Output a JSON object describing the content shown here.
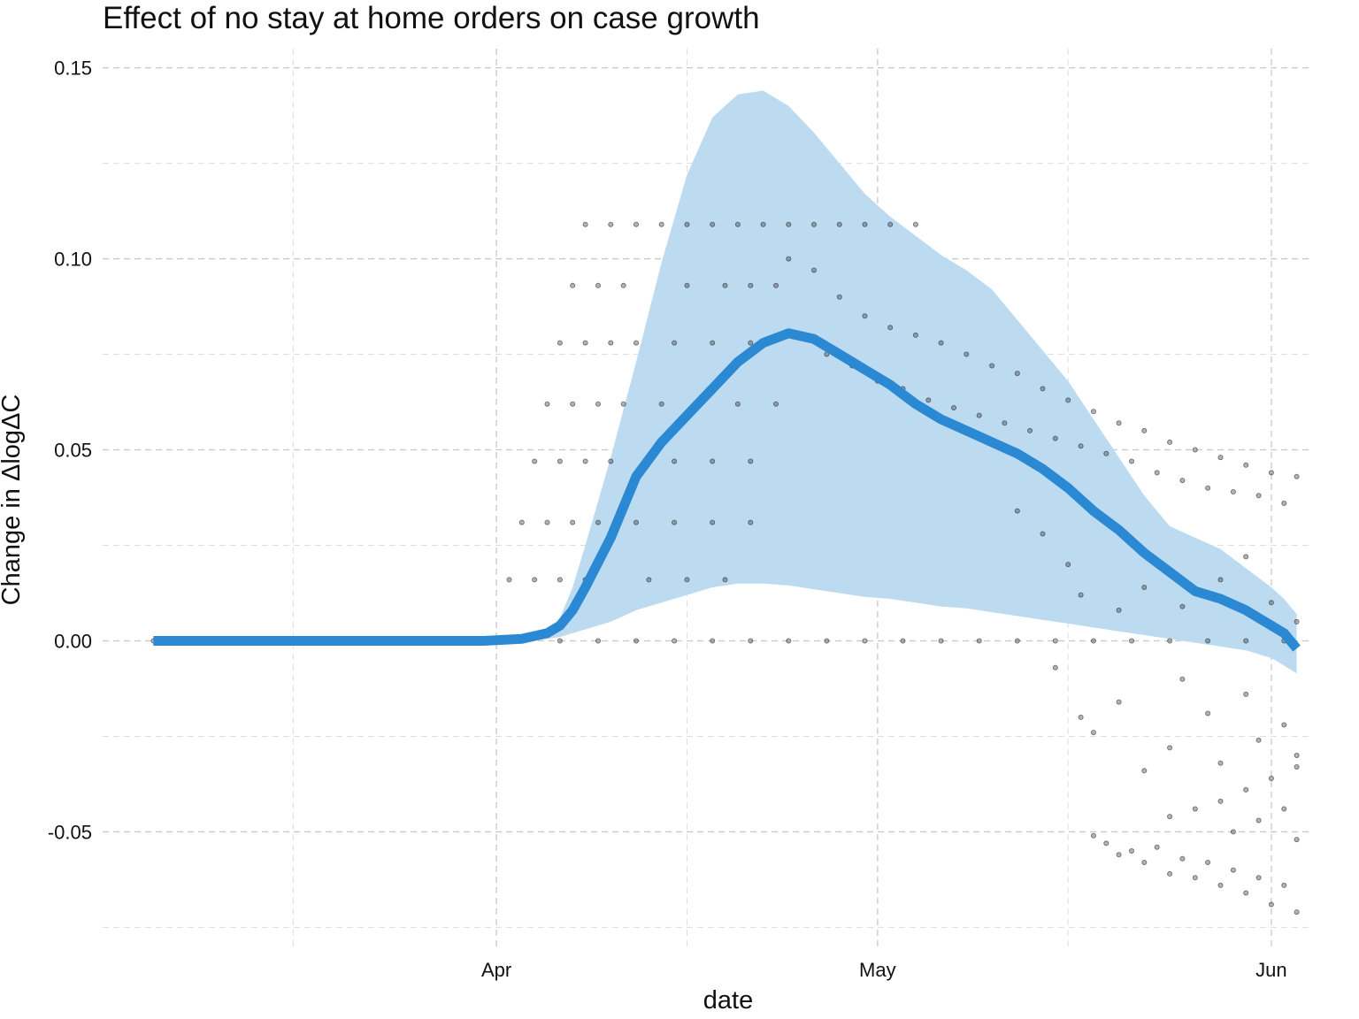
{
  "chart_data": {
    "type": "line",
    "title": "Effect of no stay at home orders on case growth",
    "xlabel": "date",
    "ylabel": "Change in ΔlogΔC",
    "x_range": [
      "2020-03-01",
      "2020-06-04"
    ],
    "ylim": [
      -0.08,
      0.155
    ],
    "x_tick_labels": [
      {
        "date": "2020-04-01",
        "label": "Apr"
      },
      {
        "date": "2020-05-01",
        "label": "May"
      },
      {
        "date": "2020-06-01",
        "label": "Jun"
      }
    ],
    "x_minor_grid_dates": [
      "2020-03-16",
      "2020-04-16",
      "2020-05-16"
    ],
    "y_ticks": [
      -0.05,
      0.0,
      0.05,
      0.1,
      0.15
    ],
    "y_tick_labels": [
      "-0.05",
      "0.00",
      "0.05",
      "0.10",
      "0.15"
    ],
    "y_minor_grid": [
      -0.075,
      -0.025,
      0.025,
      0.075,
      0.125
    ],
    "grid": true,
    "colors": {
      "line": "#2b88d2",
      "band": "#bcdbf1",
      "points": "#222222"
    },
    "series": [
      {
        "type": "line",
        "x": [
          "2020-03-05",
          "2020-03-31",
          "2020-04-03",
          "2020-04-05",
          "2020-04-06",
          "2020-04-07",
          "2020-04-08",
          "2020-04-10",
          "2020-04-12",
          "2020-04-14",
          "2020-04-16",
          "2020-04-18",
          "2020-04-20",
          "2020-04-22",
          "2020-04-24",
          "2020-04-26",
          "2020-04-28",
          "2020-04-30",
          "2020-05-02",
          "2020-05-04",
          "2020-05-06",
          "2020-05-08",
          "2020-05-10",
          "2020-05-12",
          "2020-05-14",
          "2020-05-16",
          "2020-05-18",
          "2020-05-20",
          "2020-05-22",
          "2020-05-24",
          "2020-05-26",
          "2020-05-28",
          "2020-05-30",
          "2020-06-01",
          "2020-06-02",
          "2020-06-03"
        ],
        "y": [
          0.0,
          0.0,
          0.0005,
          0.002,
          0.004,
          0.008,
          0.014,
          0.027,
          0.043,
          0.052,
          0.059,
          0.066,
          0.073,
          0.078,
          0.0805,
          0.079,
          0.075,
          0.071,
          0.067,
          0.062,
          0.058,
          0.055,
          0.052,
          0.049,
          0.045,
          0.04,
          0.034,
          0.029,
          0.023,
          0.018,
          0.013,
          0.011,
          0.008,
          0.004,
          0.002,
          -0.002
        ]
      },
      {
        "type": "band",
        "x": [
          "2020-04-04",
          "2020-04-05",
          "2020-04-06",
          "2020-04-07",
          "2020-04-08",
          "2020-04-10",
          "2020-04-12",
          "2020-04-14",
          "2020-04-16",
          "2020-04-18",
          "2020-04-20",
          "2020-04-22",
          "2020-04-24",
          "2020-04-26",
          "2020-04-28",
          "2020-04-30",
          "2020-05-02",
          "2020-05-04",
          "2020-05-06",
          "2020-05-08",
          "2020-05-10",
          "2020-05-12",
          "2020-05-14",
          "2020-05-16",
          "2020-05-18",
          "2020-05-20",
          "2020-05-22",
          "2020-05-24",
          "2020-05-26",
          "2020-05-28",
          "2020-05-30",
          "2020-06-01",
          "2020-06-02",
          "2020-06-03"
        ],
        "upper": [
          0.0,
          0.002,
          0.006,
          0.014,
          0.025,
          0.048,
          0.073,
          0.099,
          0.122,
          0.137,
          0.143,
          0.144,
          0.14,
          0.133,
          0.125,
          0.117,
          0.111,
          0.106,
          0.101,
          0.097,
          0.092,
          0.084,
          0.076,
          0.068,
          0.058,
          0.048,
          0.038,
          0.03,
          0.027,
          0.024,
          0.019,
          0.014,
          0.011,
          0.007
        ],
        "lower": [
          0.0,
          0.0005,
          0.001,
          0.002,
          0.003,
          0.005,
          0.008,
          0.01,
          0.012,
          0.014,
          0.015,
          0.015,
          0.0145,
          0.0135,
          0.0125,
          0.0115,
          0.011,
          0.01,
          0.009,
          0.0085,
          0.0075,
          0.0065,
          0.0055,
          0.0045,
          0.0035,
          0.0025,
          0.0015,
          0.0005,
          -0.0005,
          -0.0015,
          -0.0025,
          -0.0045,
          -0.0065,
          -0.0085
        ]
      },
      {
        "type": "scatter",
        "points": [
          {
            "x": "2020-03-05",
            "y": 0
          },
          {
            "x": "2020-03-10",
            "y": 0
          },
          {
            "x": "2020-03-15",
            "y": 0
          },
          {
            "x": "2020-03-20",
            "y": 0
          },
          {
            "x": "2020-03-25",
            "y": 0
          },
          {
            "x": "2020-03-30",
            "y": 0
          },
          {
            "x": "2020-04-03",
            "y": 0
          },
          {
            "x": "2020-04-06",
            "y": 0
          },
          {
            "x": "2020-04-09",
            "y": 0
          },
          {
            "x": "2020-04-12",
            "y": 0
          },
          {
            "x": "2020-04-15",
            "y": 0
          },
          {
            "x": "2020-04-18",
            "y": 0
          },
          {
            "x": "2020-04-21",
            "y": 0
          },
          {
            "x": "2020-04-24",
            "y": 0
          },
          {
            "x": "2020-04-27",
            "y": 0
          },
          {
            "x": "2020-04-30",
            "y": 0
          },
          {
            "x": "2020-05-03",
            "y": 0
          },
          {
            "x": "2020-05-06",
            "y": 0
          },
          {
            "x": "2020-05-09",
            "y": 0
          },
          {
            "x": "2020-05-12",
            "y": 0
          },
          {
            "x": "2020-05-15",
            "y": 0
          },
          {
            "x": "2020-05-18",
            "y": 0
          },
          {
            "x": "2020-05-21",
            "y": 0
          },
          {
            "x": "2020-05-24",
            "y": 0
          },
          {
            "x": "2020-05-27",
            "y": 0
          },
          {
            "x": "2020-05-30",
            "y": 0
          },
          {
            "x": "2020-06-02",
            "y": 0
          },
          {
            "x": "2020-04-08",
            "y": 0.109
          },
          {
            "x": "2020-04-10",
            "y": 0.109
          },
          {
            "x": "2020-04-12",
            "y": 0.109
          },
          {
            "x": "2020-04-14",
            "y": 0.109
          },
          {
            "x": "2020-04-16",
            "y": 0.109
          },
          {
            "x": "2020-04-18",
            "y": 0.109
          },
          {
            "x": "2020-04-20",
            "y": 0.109
          },
          {
            "x": "2020-04-22",
            "y": 0.109
          },
          {
            "x": "2020-04-24",
            "y": 0.109
          },
          {
            "x": "2020-04-26",
            "y": 0.109
          },
          {
            "x": "2020-04-28",
            "y": 0.109
          },
          {
            "x": "2020-04-30",
            "y": 0.109
          },
          {
            "x": "2020-05-02",
            "y": 0.109
          },
          {
            "x": "2020-05-04",
            "y": 0.109
          },
          {
            "x": "2020-04-07",
            "y": 0.093
          },
          {
            "x": "2020-04-09",
            "y": 0.093
          },
          {
            "x": "2020-04-11",
            "y": 0.093
          },
          {
            "x": "2020-04-16",
            "y": 0.093
          },
          {
            "x": "2020-04-19",
            "y": 0.093
          },
          {
            "x": "2020-04-21",
            "y": 0.093
          },
          {
            "x": "2020-04-23",
            "y": 0.093
          },
          {
            "x": "2020-04-06",
            "y": 0.078
          },
          {
            "x": "2020-04-08",
            "y": 0.078
          },
          {
            "x": "2020-04-10",
            "y": 0.078
          },
          {
            "x": "2020-04-12",
            "y": 0.078
          },
          {
            "x": "2020-04-15",
            "y": 0.078
          },
          {
            "x": "2020-04-18",
            "y": 0.078
          },
          {
            "x": "2020-04-21",
            "y": 0.078
          },
          {
            "x": "2020-04-05",
            "y": 0.062
          },
          {
            "x": "2020-04-07",
            "y": 0.062
          },
          {
            "x": "2020-04-09",
            "y": 0.062
          },
          {
            "x": "2020-04-11",
            "y": 0.062
          },
          {
            "x": "2020-04-14",
            "y": 0.062
          },
          {
            "x": "2020-04-17",
            "y": 0.062
          },
          {
            "x": "2020-04-20",
            "y": 0.062
          },
          {
            "x": "2020-04-23",
            "y": 0.062
          },
          {
            "x": "2020-04-04",
            "y": 0.047
          },
          {
            "x": "2020-04-06",
            "y": 0.047
          },
          {
            "x": "2020-04-08",
            "y": 0.047
          },
          {
            "x": "2020-04-10",
            "y": 0.047
          },
          {
            "x": "2020-04-15",
            "y": 0.047
          },
          {
            "x": "2020-04-18",
            "y": 0.047
          },
          {
            "x": "2020-04-21",
            "y": 0.047
          },
          {
            "x": "2020-04-03",
            "y": 0.031
          },
          {
            "x": "2020-04-05",
            "y": 0.031
          },
          {
            "x": "2020-04-07",
            "y": 0.031
          },
          {
            "x": "2020-04-09",
            "y": 0.031
          },
          {
            "x": "2020-04-12",
            "y": 0.031
          },
          {
            "x": "2020-04-15",
            "y": 0.031
          },
          {
            "x": "2020-04-18",
            "y": 0.031
          },
          {
            "x": "2020-04-21",
            "y": 0.031
          },
          {
            "x": "2020-04-02",
            "y": 0.016
          },
          {
            "x": "2020-04-04",
            "y": 0.016
          },
          {
            "x": "2020-04-06",
            "y": 0.016
          },
          {
            "x": "2020-04-08",
            "y": 0.016
          },
          {
            "x": "2020-04-13",
            "y": 0.016
          },
          {
            "x": "2020-04-16",
            "y": 0.016
          },
          {
            "x": "2020-04-19",
            "y": 0.016
          },
          {
            "x": "2020-04-24",
            "y": 0.1
          },
          {
            "x": "2020-04-26",
            "y": 0.097
          },
          {
            "x": "2020-04-28",
            "y": 0.09
          },
          {
            "x": "2020-04-30",
            "y": 0.085
          },
          {
            "x": "2020-05-02",
            "y": 0.082
          },
          {
            "x": "2020-05-04",
            "y": 0.08
          },
          {
            "x": "2020-05-06",
            "y": 0.078
          },
          {
            "x": "2020-05-08",
            "y": 0.075
          },
          {
            "x": "2020-05-10",
            "y": 0.072
          },
          {
            "x": "2020-05-12",
            "y": 0.07
          },
          {
            "x": "2020-05-14",
            "y": 0.066
          },
          {
            "x": "2020-05-16",
            "y": 0.063
          },
          {
            "x": "2020-05-18",
            "y": 0.06
          },
          {
            "x": "2020-05-20",
            "y": 0.057
          },
          {
            "x": "2020-05-22",
            "y": 0.055
          },
          {
            "x": "2020-05-24",
            "y": 0.052
          },
          {
            "x": "2020-05-26",
            "y": 0.05
          },
          {
            "x": "2020-05-28",
            "y": 0.048
          },
          {
            "x": "2020-05-30",
            "y": 0.046
          },
          {
            "x": "2020-06-01",
            "y": 0.044
          },
          {
            "x": "2020-06-03",
            "y": 0.043
          },
          {
            "x": "2020-04-27",
            "y": 0.075
          },
          {
            "x": "2020-04-29",
            "y": 0.072
          },
          {
            "x": "2020-05-01",
            "y": 0.068
          },
          {
            "x": "2020-05-03",
            "y": 0.066
          },
          {
            "x": "2020-05-05",
            "y": 0.063
          },
          {
            "x": "2020-05-07",
            "y": 0.061
          },
          {
            "x": "2020-05-09",
            "y": 0.059
          },
          {
            "x": "2020-05-11",
            "y": 0.057
          },
          {
            "x": "2020-05-13",
            "y": 0.055
          },
          {
            "x": "2020-05-15",
            "y": 0.053
          },
          {
            "x": "2020-05-17",
            "y": 0.051
          },
          {
            "x": "2020-05-19",
            "y": 0.049
          },
          {
            "x": "2020-05-21",
            "y": 0.047
          },
          {
            "x": "2020-05-23",
            "y": 0.044
          },
          {
            "x": "2020-05-25",
            "y": 0.042
          },
          {
            "x": "2020-05-27",
            "y": 0.04
          },
          {
            "x": "2020-05-29",
            "y": 0.039
          },
          {
            "x": "2020-05-31",
            "y": 0.038
          },
          {
            "x": "2020-06-02",
            "y": 0.036
          },
          {
            "x": "2020-05-12",
            "y": 0.034
          },
          {
            "x": "2020-05-14",
            "y": 0.028
          },
          {
            "x": "2020-05-16",
            "y": 0.02
          },
          {
            "x": "2020-05-17",
            "y": 0.012
          },
          {
            "x": "2020-05-20",
            "y": 0.008
          },
          {
            "x": "2020-05-22",
            "y": 0.014
          },
          {
            "x": "2020-05-25",
            "y": 0.009
          },
          {
            "x": "2020-05-28",
            "y": 0.016
          },
          {
            "x": "2020-05-30",
            "y": 0.022
          },
          {
            "x": "2020-06-01",
            "y": 0.01
          },
          {
            "x": "2020-06-03",
            "y": 0.005
          },
          {
            "x": "2020-05-15",
            "y": -0.007
          },
          {
            "x": "2020-05-17",
            "y": -0.02
          },
          {
            "x": "2020-05-18",
            "y": -0.024
          },
          {
            "x": "2020-05-20",
            "y": -0.016
          },
          {
            "x": "2020-05-22",
            "y": -0.034
          },
          {
            "x": "2020-05-24",
            "y": -0.028
          },
          {
            "x": "2020-05-25",
            "y": -0.01
          },
          {
            "x": "2020-05-27",
            "y": -0.019
          },
          {
            "x": "2020-05-28",
            "y": -0.032
          },
          {
            "x": "2020-05-30",
            "y": -0.014
          },
          {
            "x": "2020-05-31",
            "y": -0.026
          },
          {
            "x": "2020-06-02",
            "y": -0.022
          },
          {
            "x": "2020-06-03",
            "y": -0.03
          },
          {
            "x": "2020-05-18",
            "y": -0.051
          },
          {
            "x": "2020-05-19",
            "y": -0.053
          },
          {
            "x": "2020-05-20",
            "y": -0.056
          },
          {
            "x": "2020-05-21",
            "y": -0.055
          },
          {
            "x": "2020-05-22",
            "y": -0.058
          },
          {
            "x": "2020-05-23",
            "y": -0.054
          },
          {
            "x": "2020-05-24",
            "y": -0.061
          },
          {
            "x": "2020-05-25",
            "y": -0.057
          },
          {
            "x": "2020-05-26",
            "y": -0.062
          },
          {
            "x": "2020-05-27",
            "y": -0.058
          },
          {
            "x": "2020-05-28",
            "y": -0.064
          },
          {
            "x": "2020-05-29",
            "y": -0.06
          },
          {
            "x": "2020-05-30",
            "y": -0.066
          },
          {
            "x": "2020-05-31",
            "y": -0.062
          },
          {
            "x": "2020-06-01",
            "y": -0.069
          },
          {
            "x": "2020-06-02",
            "y": -0.064
          },
          {
            "x": "2020-06-03",
            "y": -0.071
          },
          {
            "x": "2020-05-24",
            "y": -0.046
          },
          {
            "x": "2020-05-26",
            "y": -0.044
          },
          {
            "x": "2020-05-28",
            "y": -0.042
          },
          {
            "x": "2020-05-30",
            "y": -0.039
          },
          {
            "x": "2020-06-01",
            "y": -0.036
          },
          {
            "x": "2020-06-03",
            "y": -0.033
          },
          {
            "x": "2020-05-29",
            "y": -0.05
          },
          {
            "x": "2020-05-31",
            "y": -0.047
          },
          {
            "x": "2020-06-02",
            "y": -0.044
          },
          {
            "x": "2020-06-03",
            "y": -0.052
          }
        ]
      }
    ]
  }
}
